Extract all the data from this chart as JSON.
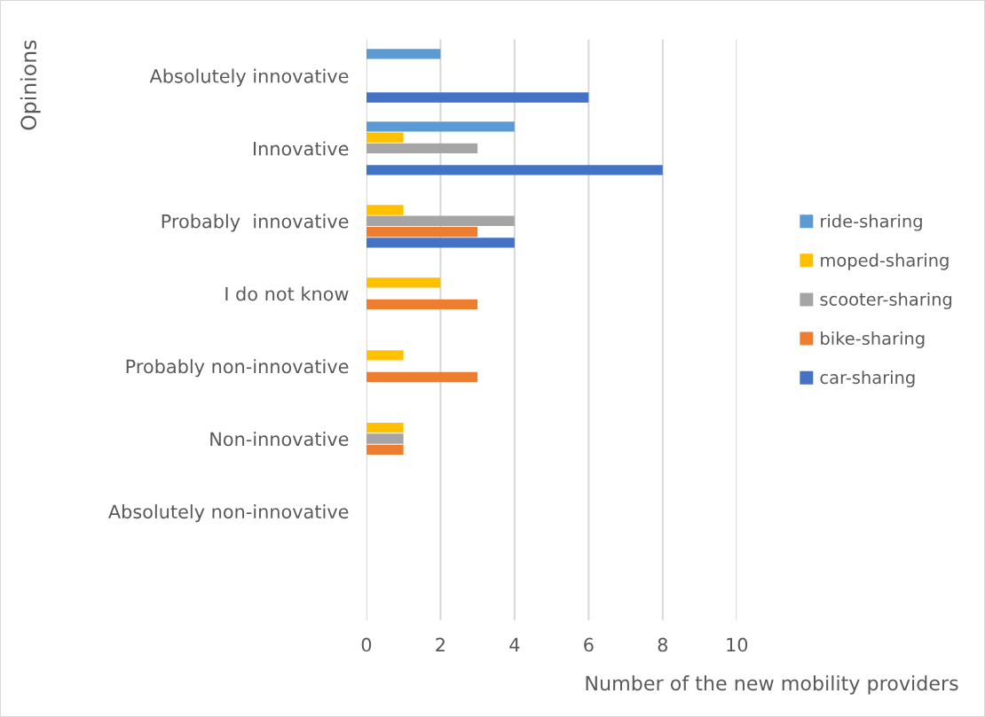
{
  "chart_data": {
    "type": "bar",
    "orientation": "horizontal",
    "xlabel": "Number of the new mobility providers",
    "ylabel": "Opinions",
    "categories": [
      "Absolutely innovative",
      "Innovative",
      "Probably  innovative",
      "I do not know",
      "Probably non-innovative",
      "Non-innovative",
      "Absolutely non-innovative",
      null
    ],
    "series": [
      {
        "name": "ride-sharing",
        "color": "#5b9bd5",
        "values": [
          2,
          4,
          0,
          0,
          0,
          0,
          0,
          null
        ]
      },
      {
        "name": "moped-sharing",
        "color": "#ffc000",
        "values": [
          0,
          1,
          1,
          2,
          1,
          1,
          0,
          null
        ]
      },
      {
        "name": "scooter-sharing",
        "color": "#a5a5a5",
        "values": [
          0,
          3,
          4,
          0,
          0,
          1,
          0,
          null
        ]
      },
      {
        "name": "bike-sharing",
        "color": "#ed7d31",
        "values": [
          0,
          0,
          3,
          3,
          3,
          1,
          0,
          null
        ]
      },
      {
        "name": "car-sharing",
        "color": "#4472c4",
        "values": [
          6,
          8,
          4,
          0,
          0,
          0,
          0,
          null
        ]
      }
    ],
    "xlim": [
      0,
      10
    ],
    "xticks": [
      0,
      2,
      4,
      6,
      8,
      10
    ],
    "grid": "x",
    "legend": "right"
  }
}
